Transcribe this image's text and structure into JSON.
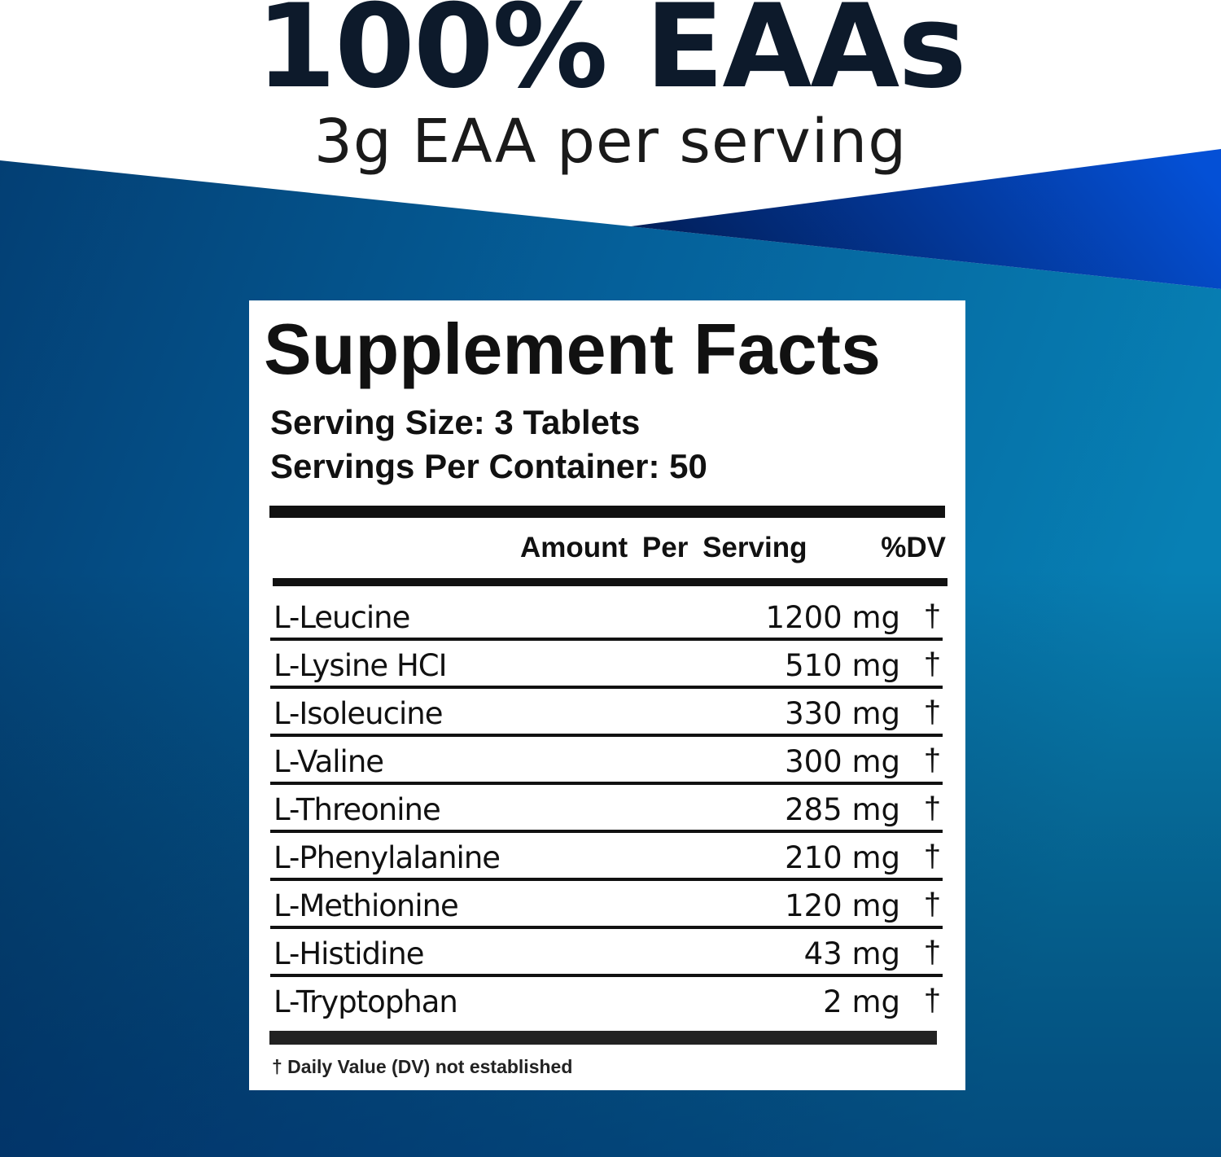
{
  "header": {
    "headline": "100% EAAs",
    "subheadline": "3g EAA per serving"
  },
  "colors": {
    "background_white": "#ffffff",
    "blue_left": "#02457a",
    "blue_teal": "#0677aa",
    "royal_blue": "#0445c9",
    "navy": "#021f5a",
    "text": "#111111"
  },
  "facts": {
    "title": "Supplement Facts",
    "serving_size": "Serving Size: 3 Tablets",
    "servings_per_container": "Servings Per Container: 50",
    "col_amount": "Amount Per Serving",
    "col_dv": "%DV",
    "rows": [
      {
        "name": "L-Leucine",
        "amount": "1200 mg",
        "dv": "†"
      },
      {
        "name": "L-Lysine HCI",
        "amount": "510 mg",
        "dv": "†"
      },
      {
        "name": "L-Isoleucine",
        "amount": "330 mg",
        "dv": "†"
      },
      {
        "name": "L-Valine",
        "amount": "300 mg",
        "dv": "†"
      },
      {
        "name": "L-Threonine",
        "amount": "285 mg",
        "dv": "†"
      },
      {
        "name": "L-Phenylalanine",
        "amount": "210 mg",
        "dv": "†"
      },
      {
        "name": "L-Methionine",
        "amount": "120 mg",
        "dv": "†"
      },
      {
        "name": "L-Histidine",
        "amount": "43 mg",
        "dv": "†"
      },
      {
        "name": "L-Tryptophan",
        "amount": "2 mg",
        "dv": "†"
      }
    ],
    "footnote": "† Daily Value (DV) not established"
  }
}
